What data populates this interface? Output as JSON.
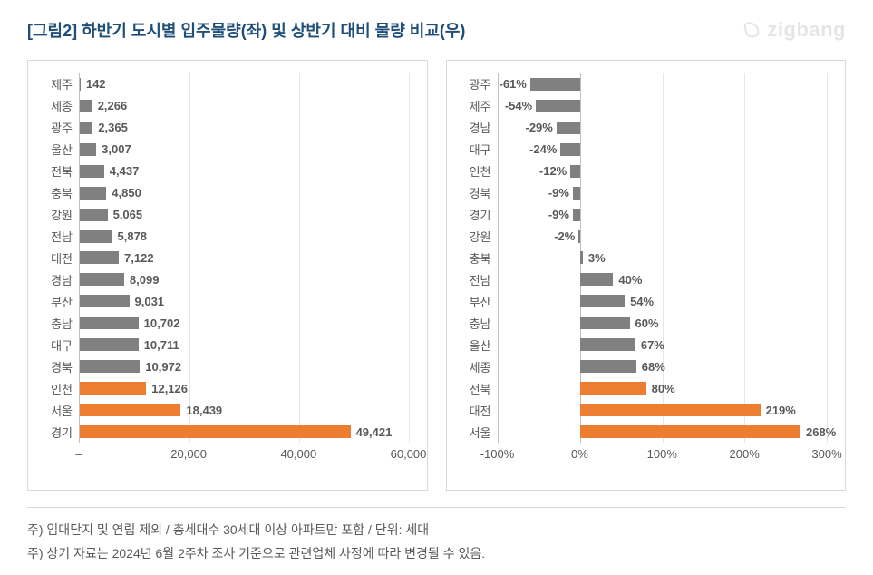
{
  "title": "[그림2] 하반기 도시별 입주물량(좌) 및 상반기 대비 물량 비교(우)",
  "title_color": "#1f4e79",
  "title_fontsize": 18,
  "brand": "zigbang",
  "brand_color": "#b7b7b7",
  "panel_border": "#d9d9d9",
  "grid_color": "#e6e6e6",
  "axis_color": "#bfbfbf",
  "bar_gray": "#808080",
  "bar_orange": "#ed7d31",
  "label_fontsize": 13,
  "value_fontsize": 13,
  "tick_fontsize": 13,
  "left_chart": {
    "type": "bar-horizontal",
    "xmin": 0,
    "xmax": 60000,
    "xticks": [
      0,
      20000,
      40000,
      60000
    ],
    "xticklabels": [
      "–",
      "20,000",
      "40,000",
      "60,000"
    ],
    "rows": [
      {
        "cat": "제주",
        "val": 142,
        "label": "142",
        "color": "#808080"
      },
      {
        "cat": "세종",
        "val": 2266,
        "label": "2,266",
        "color": "#808080"
      },
      {
        "cat": "광주",
        "val": 2365,
        "label": "2,365",
        "color": "#808080"
      },
      {
        "cat": "울산",
        "val": 3007,
        "label": "3,007",
        "color": "#808080"
      },
      {
        "cat": "전북",
        "val": 4437,
        "label": "4,437",
        "color": "#808080"
      },
      {
        "cat": "충북",
        "val": 4850,
        "label": "4,850",
        "color": "#808080"
      },
      {
        "cat": "강원",
        "val": 5065,
        "label": "5,065",
        "color": "#808080"
      },
      {
        "cat": "전남",
        "val": 5878,
        "label": "5,878",
        "color": "#808080"
      },
      {
        "cat": "대전",
        "val": 7122,
        "label": "7,122",
        "color": "#808080"
      },
      {
        "cat": "경남",
        "val": 8099,
        "label": "8,099",
        "color": "#808080"
      },
      {
        "cat": "부산",
        "val": 9031,
        "label": "9,031",
        "color": "#808080"
      },
      {
        "cat": "충남",
        "val": 10702,
        "label": "10,702",
        "color": "#808080"
      },
      {
        "cat": "대구",
        "val": 10711,
        "label": "10,711",
        "color": "#808080"
      },
      {
        "cat": "경북",
        "val": 10972,
        "label": "10,972",
        "color": "#808080"
      },
      {
        "cat": "인천",
        "val": 12126,
        "label": "12,126",
        "color": "#ed7d31"
      },
      {
        "cat": "서울",
        "val": 18439,
        "label": "18,439",
        "color": "#ed7d31"
      },
      {
        "cat": "경기",
        "val": 49421,
        "label": "49,421",
        "color": "#ed7d31"
      }
    ]
  },
  "right_chart": {
    "type": "bar-horizontal-diverging",
    "xmin": -100,
    "xmax": 300,
    "xticks": [
      -100,
      0,
      100,
      200,
      300
    ],
    "xticklabels": [
      "-100%",
      "0%",
      "100%",
      "200%",
      "300%"
    ],
    "rows": [
      {
        "cat": "광주",
        "val": -61,
        "label": "-61%",
        "color": "#808080",
        "labelside": "left"
      },
      {
        "cat": "제주",
        "val": -54,
        "label": "-54%",
        "color": "#808080",
        "labelside": "left"
      },
      {
        "cat": "경남",
        "val": -29,
        "label": "-29%",
        "color": "#808080",
        "labelside": "left"
      },
      {
        "cat": "대구",
        "val": -24,
        "label": "-24%",
        "color": "#808080",
        "labelside": "left"
      },
      {
        "cat": "인천",
        "val": -12,
        "label": "-12%",
        "color": "#808080",
        "labelside": "left"
      },
      {
        "cat": "경북",
        "val": -9,
        "label": "-9%",
        "color": "#808080",
        "labelside": "left"
      },
      {
        "cat": "경기",
        "val": -9,
        "label": "-9%",
        "color": "#808080",
        "labelside": "left"
      },
      {
        "cat": "강원",
        "val": -2,
        "label": "-2%",
        "color": "#808080",
        "labelside": "left"
      },
      {
        "cat": "충북",
        "val": 3,
        "label": "3%",
        "color": "#808080",
        "labelside": "right"
      },
      {
        "cat": "전남",
        "val": 40,
        "label": "40%",
        "color": "#808080",
        "labelside": "right"
      },
      {
        "cat": "부산",
        "val": 54,
        "label": "54%",
        "color": "#808080",
        "labelside": "right"
      },
      {
        "cat": "충남",
        "val": 60,
        "label": "60%",
        "color": "#808080",
        "labelside": "right"
      },
      {
        "cat": "울산",
        "val": 67,
        "label": "67%",
        "color": "#808080",
        "labelside": "right"
      },
      {
        "cat": "세종",
        "val": 68,
        "label": "68%",
        "color": "#808080",
        "labelside": "right"
      },
      {
        "cat": "전북",
        "val": 80,
        "label": "80%",
        "color": "#ed7d31",
        "labelside": "right"
      },
      {
        "cat": "대전",
        "val": 219,
        "label": "219%",
        "color": "#ed7d31",
        "labelside": "right"
      },
      {
        "cat": "서울",
        "val": 268,
        "label": "268%",
        "color": "#ed7d31",
        "labelside": "right"
      }
    ]
  },
  "footnotes": [
    "주) 임대단지 및 연립 제외 / 총세대수 30세대 이상 아파트만 포함 / 단위: 세대",
    "주) 상기 자료는 2024년 6월 2주차 조사 기준으로 관련업체 사정에 따라 변경될 수 있음."
  ],
  "footnote_color": "#595959",
  "footnote_fontsize": 14
}
